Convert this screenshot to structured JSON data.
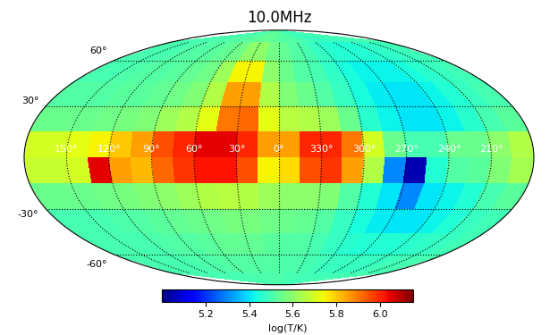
{
  "chart_data": {
    "type": "skymap",
    "title": "10.0MHz",
    "lon": [
      172.5,
      157.5,
      142.5,
      127.5,
      112.5,
      97.5,
      82.5,
      67.5,
      52.5,
      37.5,
      22.5,
      7.5,
      352.5,
      337.5,
      322.5,
      307.5,
      292.5,
      277.5,
      262.5,
      247.5,
      232.5,
      217.5,
      202.5,
      187.5
    ],
    "lat": [
      82.5,
      67.5,
      52.5,
      37.5,
      22.5,
      7.5,
      -7.5,
      -22.5,
      -37.5,
      -52.5,
      -67.5,
      -82.5
    ],
    "cells": [
      [
        5.5,
        5.5,
        5.5,
        5.5,
        5.51,
        5.51,
        5.52,
        5.52,
        5.53,
        5.54,
        5.54,
        5.53,
        5.52,
        5.52,
        5.51,
        5.5,
        5.49,
        5.48,
        5.48,
        5.48,
        5.49,
        5.49,
        5.5,
        5.5
      ],
      [
        5.5,
        5.5,
        5.5,
        5.51,
        5.52,
        5.52,
        5.53,
        5.54,
        5.56,
        5.6,
        5.6,
        5.56,
        5.54,
        5.52,
        5.5,
        5.48,
        5.46,
        5.45,
        5.45,
        5.45,
        5.46,
        5.47,
        5.48,
        5.49
      ],
      [
        5.5,
        5.5,
        5.51,
        5.52,
        5.52,
        5.53,
        5.54,
        5.56,
        5.62,
        5.75,
        5.75,
        5.6,
        5.55,
        5.52,
        5.5,
        5.47,
        5.44,
        5.42,
        5.42,
        5.42,
        5.44,
        5.46,
        5.48,
        5.49
      ],
      [
        5.52,
        5.52,
        5.52,
        5.53,
        5.53,
        5.54,
        5.56,
        5.58,
        5.65,
        5.85,
        5.85,
        5.65,
        5.58,
        5.55,
        5.52,
        5.48,
        5.44,
        5.41,
        5.4,
        5.4,
        5.42,
        5.45,
        5.48,
        5.5
      ],
      [
        5.55,
        5.55,
        5.55,
        5.56,
        5.57,
        5.58,
        5.62,
        5.65,
        5.72,
        5.9,
        5.92,
        5.72,
        5.66,
        5.65,
        5.62,
        5.55,
        5.46,
        5.42,
        5.4,
        5.4,
        5.42,
        5.46,
        5.5,
        5.53
      ],
      [
        5.7,
        5.7,
        5.72,
        5.75,
        5.8,
        5.85,
        5.95,
        6.0,
        6.05,
        6.05,
        6.0,
        5.85,
        5.85,
        6.0,
        6.0,
        5.9,
        5.7,
        5.55,
        5.5,
        5.5,
        5.55,
        5.55,
        5.6,
        5.65
      ],
      [
        5.68,
        5.68,
        5.7,
        6.05,
        5.85,
        5.82,
        5.92,
        5.98,
        6.02,
        6.02,
        5.95,
        5.75,
        5.78,
        5.95,
        5.98,
        5.85,
        5.65,
        5.3,
        5.05,
        5.45,
        5.52,
        5.53,
        5.58,
        5.63
      ],
      [
        5.55,
        5.55,
        5.55,
        5.56,
        5.57,
        5.58,
        5.6,
        5.62,
        5.65,
        5.66,
        5.65,
        5.62,
        5.6,
        5.6,
        5.58,
        5.52,
        5.45,
        5.4,
        5.3,
        5.4,
        5.42,
        5.45,
        5.5,
        5.53
      ],
      [
        5.5,
        5.5,
        5.5,
        5.51,
        5.52,
        5.53,
        5.54,
        5.55,
        5.56,
        5.57,
        5.57,
        5.56,
        5.55,
        5.54,
        5.52,
        5.48,
        5.44,
        5.41,
        5.4,
        5.4,
        5.42,
        5.45,
        5.48,
        5.49
      ],
      [
        5.5,
        5.5,
        5.5,
        5.5,
        5.51,
        5.52,
        5.52,
        5.53,
        5.54,
        5.54,
        5.54,
        5.53,
        5.52,
        5.52,
        5.5,
        5.48,
        5.46,
        5.45,
        5.45,
        5.45,
        5.46,
        5.47,
        5.48,
        5.49
      ],
      [
        5.5,
        5.5,
        5.5,
        5.5,
        5.5,
        5.51,
        5.51,
        5.52,
        5.52,
        5.52,
        5.52,
        5.52,
        5.51,
        5.51,
        5.5,
        5.49,
        5.48,
        5.48,
        5.48,
        5.48,
        5.48,
        5.49,
        5.49,
        5.5
      ],
      [
        5.5,
        5.5,
        5.5,
        5.5,
        5.5,
        5.5,
        5.5,
        5.5,
        5.51,
        5.51,
        5.51,
        5.51,
        5.51,
        5.5,
        5.5,
        5.5,
        5.49,
        5.49,
        5.49,
        5.49,
        5.49,
        5.5,
        5.5,
        5.5
      ]
    ],
    "xticks": [
      {
        "value": 150,
        "label": "150°"
      },
      {
        "value": 120,
        "label": "120°"
      },
      {
        "value": 90,
        "label": "90°"
      },
      {
        "value": 60,
        "label": "60°"
      },
      {
        "value": 30,
        "label": "30°"
      },
      {
        "value": 0,
        "label": "0°"
      },
      {
        "value": 330,
        "label": "330°"
      },
      {
        "value": 300,
        "label": "300°"
      },
      {
        "value": 270,
        "label": "270°"
      },
      {
        "value": 240,
        "label": "240°"
      },
      {
        "value": 210,
        "label": "210°"
      }
    ],
    "yticks": [
      {
        "value": 60,
        "label": "60°"
      },
      {
        "value": 30,
        "label": "30°"
      },
      {
        "value": -30,
        "label": "-30°"
      },
      {
        "value": -60,
        "label": "-60°"
      }
    ],
    "grid": true,
    "colorbar": {
      "label": "log(T/K)",
      "range": [
        5.0,
        6.15
      ],
      "ticks": [
        5.2,
        5.4,
        5.6,
        5.8,
        6.0
      ]
    }
  }
}
